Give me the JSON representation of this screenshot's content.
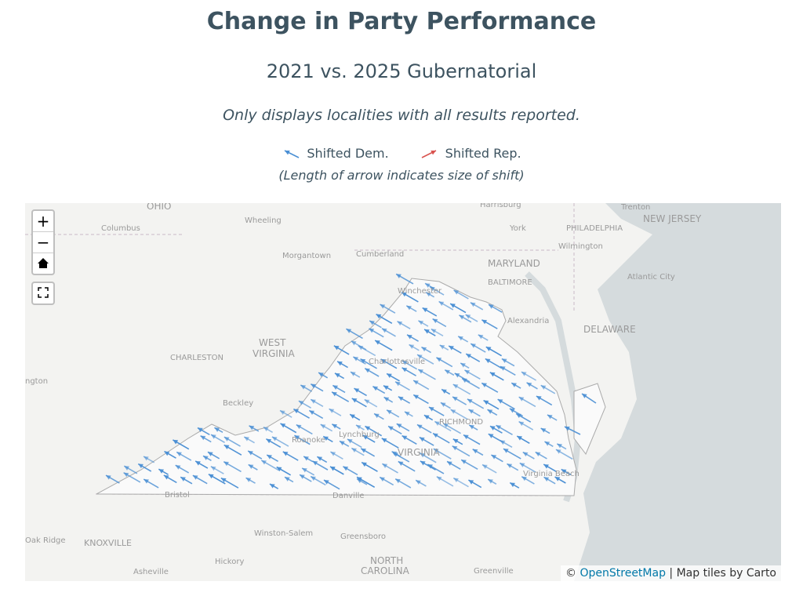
{
  "header": {
    "title": "Change in Party Performance",
    "subtitle": "2021 vs. 2025 Gubernatorial",
    "note": "Only displays localities with all results reported."
  },
  "legend": {
    "items": [
      {
        "label": "Shifted Dem.",
        "color": "#4a8fd4"
      },
      {
        "label": "Shifted Rep.",
        "color": "#d9534f"
      }
    ],
    "note": "(Length of arrow indicates size of shift)"
  },
  "map": {
    "controls": [
      "+",
      "−"
    ],
    "labels": [
      "OHIO",
      "Columbus",
      "Wheeling",
      "Harrisburg",
      "Trenton",
      "NEW JERSEY",
      "York",
      "PHILADELPHIA",
      "Wilmington",
      "Cumberland",
      "Morgantown",
      "MARYLAND",
      "BALTIMORE",
      "Atlantic City",
      "Winchester",
      "Alexandria",
      "DELAWARE",
      "WEST",
      "VIRGINIA",
      "CHARLESTON",
      "Charlottesville",
      "Beckley",
      "Lynchburg",
      "Roanoke",
      "RICHMOND",
      "VIRGINIA",
      "Virginia Beach",
      "Bristol",
      "Danville",
      "Winston-Salem",
      "Greensboro",
      "Oak Ridge",
      "KNOXVILLE",
      "NORTH",
      "CAROLINA",
      "Asheville",
      "Hickory",
      "Greenville",
      "ngton"
    ],
    "attribution": {
      "prefix": "©",
      "link": "OpenStreetMap",
      "rest": "| Map tiles by Carto"
    }
  }
}
